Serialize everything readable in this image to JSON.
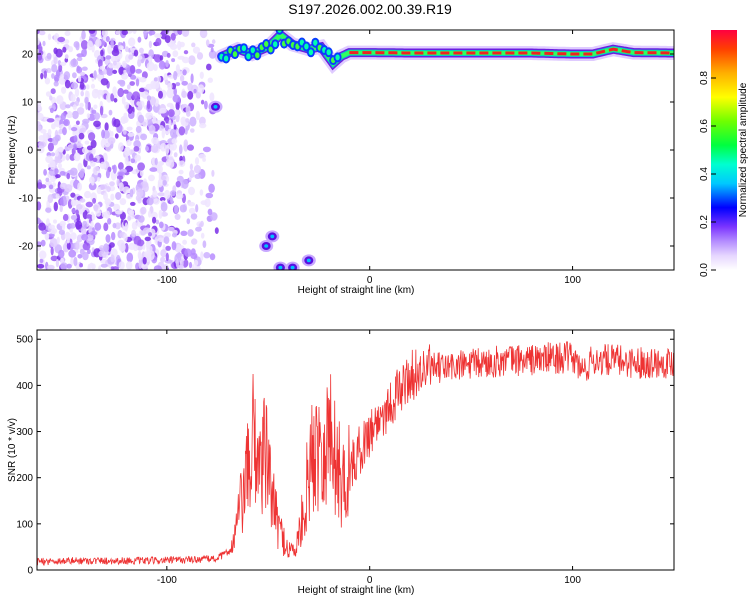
{
  "title": "S197.2026.002.00.39.R19",
  "colors": {
    "snr_line": "#ee3333",
    "carrier_core": "#ee2222",
    "noise": "#9a55ee",
    "background": "#ffffff"
  },
  "chart_data": [
    {
      "type": "heatmap",
      "name": "spectrogram",
      "xlabel": "Height of straight line (km)",
      "ylabel": "Frequency (Hz)",
      "xlim": [
        -164,
        150
      ],
      "ylim": [
        -25,
        25
      ],
      "x_ticks": [
        -100,
        0,
        100
      ],
      "y_ticks": [
        20,
        10,
        0,
        -10,
        -20
      ],
      "colorbar": {
        "label": "Normalized spectral amplitude",
        "range": [
          0,
          1
        ],
        "ticks": [
          "0.0",
          "0.2",
          "0.4",
          "0.6",
          "0.8"
        ]
      },
      "noise_region_x": [
        -164,
        -74
      ],
      "carrier": [
        {
          "x": -73,
          "y": 19.5
        },
        {
          "x": -65,
          "y": 21
        },
        {
          "x": -58,
          "y": 20
        },
        {
          "x": -50,
          "y": 21.5
        },
        {
          "x": -44,
          "y": 24
        },
        {
          "x": -38,
          "y": 22
        },
        {
          "x": -30,
          "y": 21
        },
        {
          "x": -24,
          "y": 21.5
        },
        {
          "x": -18,
          "y": 18
        },
        {
          "x": -14,
          "y": 19.5
        },
        {
          "x": -10,
          "y": 20.3
        },
        {
          "x": 0,
          "y": 20.3
        },
        {
          "x": 20,
          "y": 20.2
        },
        {
          "x": 40,
          "y": 20.2
        },
        {
          "x": 60,
          "y": 20.2
        },
        {
          "x": 80,
          "y": 20.2
        },
        {
          "x": 100,
          "y": 20
        },
        {
          "x": 110,
          "y": 20
        },
        {
          "x": 120,
          "y": 21
        },
        {
          "x": 130,
          "y": 20.3
        },
        {
          "x": 150,
          "y": 20.2
        }
      ],
      "mirror_features": [
        {
          "x": -51,
          "y": -20
        },
        {
          "x": -48,
          "y": -18
        },
        {
          "x": -44,
          "y": -24.5
        },
        {
          "x": -38,
          "y": -24.5
        },
        {
          "x": -30,
          "y": -23
        },
        {
          "x": -76,
          "y": 9
        }
      ]
    },
    {
      "type": "line",
      "name": "snr",
      "xlabel": "Height of straight line (km)",
      "ylabel": "SNR (10 * v/v)",
      "xlim": [
        -164,
        150
      ],
      "ylim": [
        0,
        520
      ],
      "x_ticks": [
        -100,
        0,
        100
      ],
      "y_ticks": [
        0,
        100,
        200,
        300,
        400,
        500
      ],
      "series": [
        {
          "x": [
            -164,
            -150,
            -130,
            -110,
            -90,
            -75,
            -68,
            -64,
            -60,
            -57,
            -55,
            -52,
            -49,
            -46,
            -43,
            -40,
            -37,
            -34,
            -31,
            -29,
            -26,
            -24,
            -22,
            -20,
            -17,
            -14,
            -11,
            -8,
            -5,
            -2,
            0,
            5,
            10,
            15,
            20,
            25,
            30,
            40,
            50,
            60,
            70,
            80,
            90,
            100,
            105,
            110,
            120,
            130,
            140,
            150
          ],
          "y": [
            18,
            20,
            20,
            20,
            22,
            25,
            45,
            130,
            210,
            300,
            230,
            260,
            190,
            110,
            70,
            45,
            40,
            90,
            180,
            230,
            270,
            300,
            260,
            300,
            250,
            190,
            210,
            230,
            260,
            280,
            300,
            330,
            360,
            390,
            420,
            430,
            435,
            440,
            445,
            450,
            455,
            455,
            460,
            460,
            430,
            455,
            455,
            450,
            450,
            450
          ]
        }
      ]
    }
  ]
}
